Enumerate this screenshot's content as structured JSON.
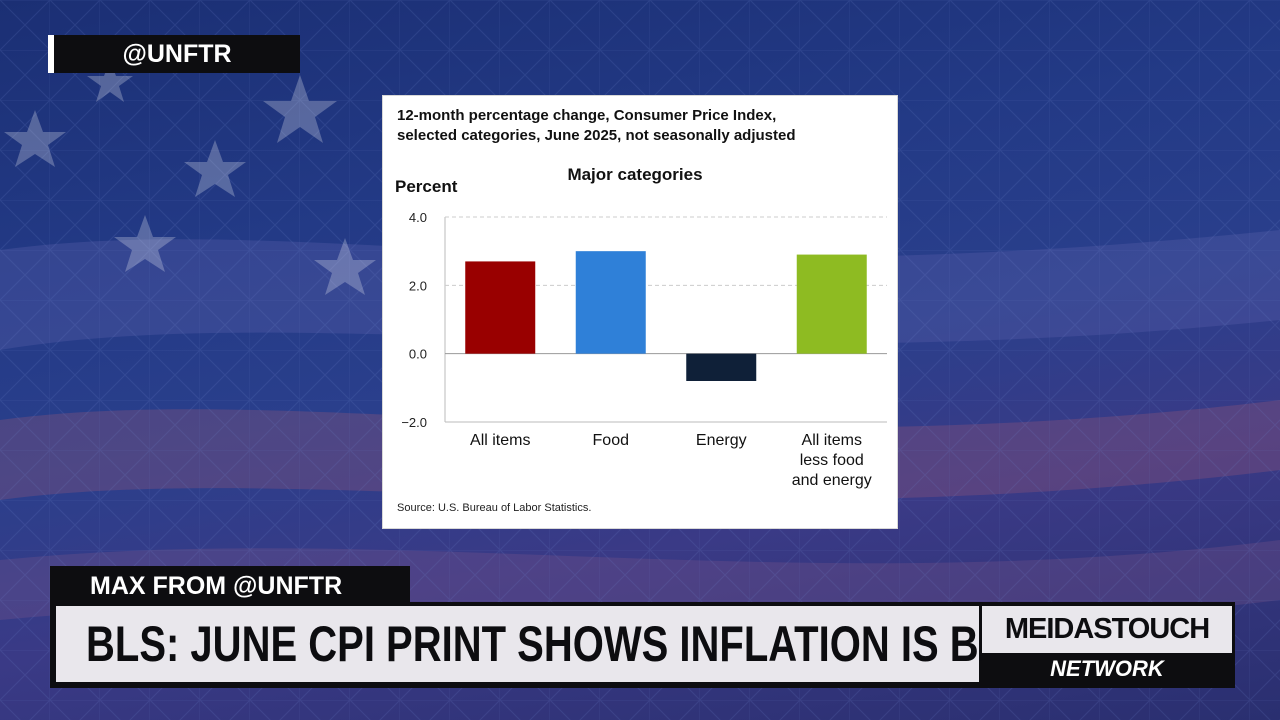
{
  "overlay": {
    "handle": "@UNFTR",
    "speaker": "MAX FROM @UNFTR",
    "headline": "BLS: JUNE CPI PRINT SHOWS INFLATION IS BACK",
    "brand_top": "MEIDASTOUCH",
    "brand_bottom": "NETWORK"
  },
  "colors": {
    "background": "#233a86",
    "overlay_dark": "#0d0d10",
    "overlay_light": "#e9e7ec"
  },
  "chart_data": {
    "type": "bar",
    "title_lines": [
      "12-month percentage change, Consumer Price Index,",
      "selected categories, June 2025, not seasonally adjusted"
    ],
    "subtitle": "Major categories",
    "ylabel": "Percent",
    "ylim": [
      -2.0,
      4.0
    ],
    "yticks": [
      "4.0",
      "2.0",
      "0.0",
      "−2.0"
    ],
    "ytick_values": [
      4,
      2,
      0,
      -2
    ],
    "categories": [
      [
        "All items"
      ],
      [
        "Food"
      ],
      [
        "Energy"
      ],
      [
        "All items",
        "less food",
        "and energy"
      ]
    ],
    "values": [
      2.7,
      3.0,
      -0.8,
      2.9
    ],
    "bar_colors": [
      "#990000",
      "#2f80d8",
      "#0f2038",
      "#8ebb22"
    ],
    "grid": true,
    "source": "Source: U.S. Bureau of Labor Statistics."
  }
}
